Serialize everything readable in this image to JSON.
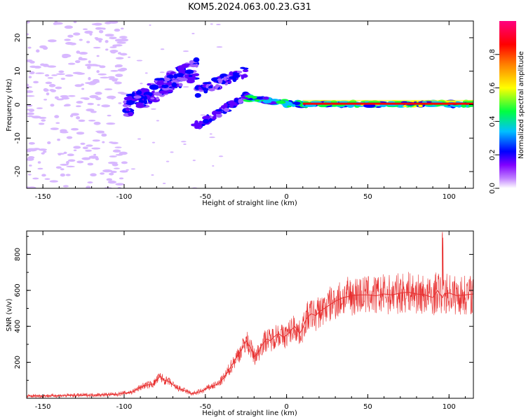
{
  "title": "KOM5.2024.063.00.23.G31",
  "chart_data": [
    {
      "type": "heatmap",
      "title": "KOM5.2024.063.00.23.G31",
      "xlabel": "Height of straight line (km)",
      "ylabel": "Frequency (Hz)",
      "xlim": [
        -160,
        115
      ],
      "ylim": [
        -25,
        25
      ],
      "x_ticks": [
        -150,
        -100,
        -50,
        0,
        50,
        100
      ],
      "y_ticks": [
        -20,
        -10,
        0,
        10,
        20
      ],
      "colorbar": {
        "label": "Normalized spectral amplitude",
        "range": [
          0,
          1
        ],
        "ticks": [
          "0.0",
          "0.2",
          "0.4",
          "0.6",
          "0.8"
        ],
        "colormap": [
          "#ffffff",
          "#8000ff",
          "#0000ff",
          "#00c0ff",
          "#00ff40",
          "#ffff00",
          "#ff8000",
          "#ff0000",
          "#ff0080"
        ]
      },
      "features": [
        {
          "name": "scattered-noise",
          "x": [
            -160,
            -95
          ],
          "freq": [
            -25,
            25
          ],
          "amplitude": 0.1
        },
        {
          "name": "rising-branch",
          "x": [
            -100,
            -55
          ],
          "freq": [
            -2,
            12
          ],
          "amplitude": 0.25
        },
        {
          "name": "descending-branch",
          "x": [
            -55,
            -20
          ],
          "freq": [
            -8,
            3
          ],
          "amplitude": 0.25
        },
        {
          "name": "upper-branch",
          "x": [
            -55,
            -25
          ],
          "freq": [
            3,
            10
          ],
          "amplitude": 0.2
        },
        {
          "name": "dominant-line",
          "x": [
            -25,
            115
          ],
          "freq": [
            -1,
            2
          ],
          "amplitude": 0.9
        }
      ]
    },
    {
      "type": "line",
      "xlabel": "Height of straight line (km)",
      "ylabel": "SNR (v/v)",
      "xlim": [
        -160,
        115
      ],
      "ylim": [
        0,
        930
      ],
      "x_ticks": [
        -150,
        -100,
        -50,
        0,
        50,
        100
      ],
      "y_ticks": [
        200,
        400,
        600,
        800
      ],
      "series": [
        {
          "color": "#e83030",
          "x": [
            -160,
            -140,
            -120,
            -105,
            -95,
            -88,
            -82,
            -78,
            -75,
            -72,
            -68,
            -62,
            -58,
            -52,
            -48,
            -42,
            -38,
            -34,
            -30,
            -27,
            -25,
            -22,
            -20,
            -17,
            -15,
            -12,
            -10,
            -8,
            -5,
            -2,
            0,
            3,
            5,
            8,
            10,
            12,
            15,
            18,
            20,
            25,
            30,
            35,
            40,
            45,
            50,
            55,
            60,
            65,
            70,
            75,
            80,
            85,
            90,
            93,
            95,
            96,
            97,
            100,
            105,
            110,
            115
          ],
          "values": [
            12,
            15,
            18,
            22,
            35,
            70,
            80,
            120,
            100,
            90,
            60,
            40,
            25,
            40,
            60,
            80,
            120,
            180,
            240,
            280,
            320,
            280,
            230,
            260,
            300,
            330,
            320,
            340,
            360,
            340,
            350,
            380,
            400,
            360,
            390,
            440,
            470,
            460,
            480,
            510,
            540,
            560,
            570,
            575,
            575,
            570,
            580,
            575,
            585,
            590,
            580,
            575,
            560,
            600,
            570,
            560,
            580,
            585,
            570,
            575,
            580
          ]
        }
      ]
    }
  ]
}
